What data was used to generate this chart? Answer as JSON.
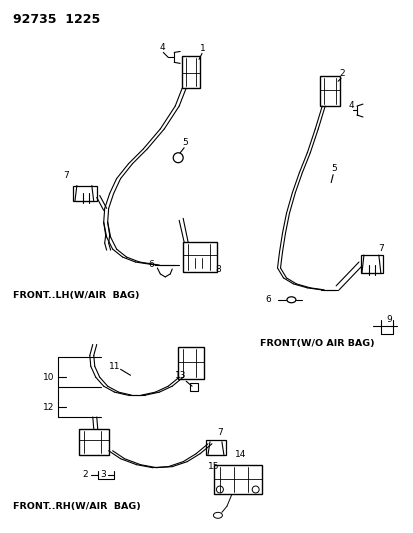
{
  "title": "92735  1225",
  "bg_color": "#ffffff",
  "line_color": "#000000",
  "labels": {
    "front_lh": "FRONT..LH(W/AIR  BAG)",
    "front_wo": "FRONT(W/O AIR BAG)",
    "front_rh": "FRONT..RH(W/AIR  BAG)"
  }
}
